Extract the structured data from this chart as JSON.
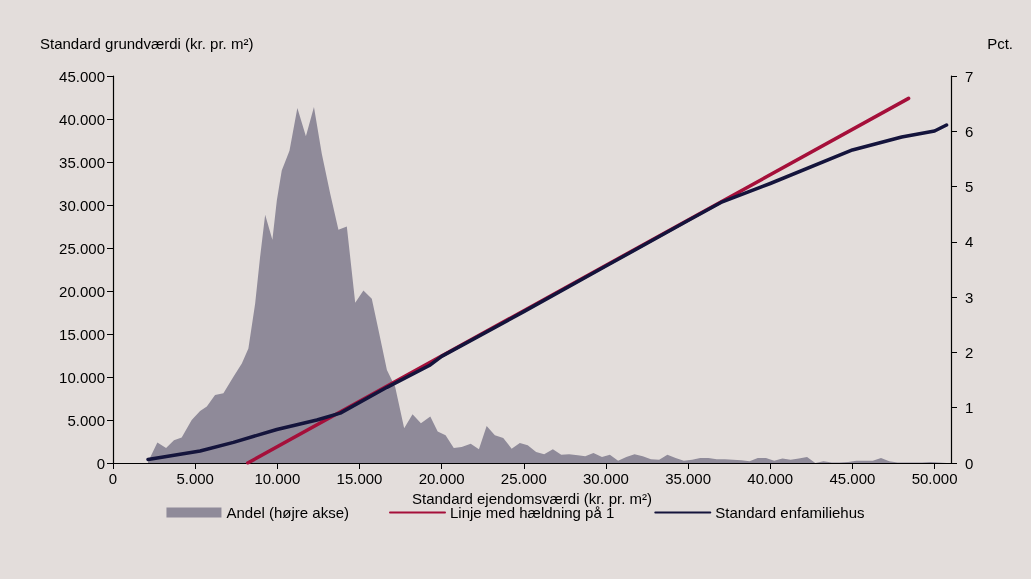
{
  "chart_data": {
    "type": "line",
    "xlabel": "Standard ejendomsværdi (kr. pr. m²)",
    "ylabel": "Standard grundværdi (kr. pr. m²)",
    "y2label": "Pct.",
    "xlim": [
      0,
      51000
    ],
    "xticks": [
      {
        "value": 0,
        "label": "0"
      },
      {
        "value": 5000,
        "label": "5.000"
      },
      {
        "value": 10000,
        "label": "10.000"
      },
      {
        "value": 15000,
        "label": "15.000"
      },
      {
        "value": 20000,
        "label": "20.000"
      },
      {
        "value": 25000,
        "label": "25.000"
      },
      {
        "value": 30000,
        "label": "30.000"
      },
      {
        "value": 35000,
        "label": "35.000"
      },
      {
        "value": 40000,
        "label": "40.000"
      },
      {
        "value": 45000,
        "label": "45.000"
      },
      {
        "value": 50000,
        "label": "50.000"
      }
    ],
    "ylim": [
      0,
      45000
    ],
    "yticks": [
      {
        "value": 0,
        "label": "0"
      },
      {
        "value": 5000,
        "label": "5.000"
      },
      {
        "value": 10000,
        "label": "10.000"
      },
      {
        "value": 15000,
        "label": "15.000"
      },
      {
        "value": 20000,
        "label": "20.000"
      },
      {
        "value": 25000,
        "label": "25.000"
      },
      {
        "value": 30000,
        "label": "30.000"
      },
      {
        "value": 35000,
        "label": "35.000"
      },
      {
        "value": 40000,
        "label": "40.000"
      },
      {
        "value": 45000,
        "label": "45.000"
      }
    ],
    "y2lim": [
      0,
      7
    ],
    "y2ticks": [
      0,
      1,
      2,
      3,
      4,
      5,
      6,
      7
    ],
    "grid": false,
    "legend": "bottom",
    "marker": "none",
    "series": [
      {
        "name": "Andel (højre akse)",
        "type": "area",
        "axis": "y2",
        "color": "#8f8a99",
        "x": [
          2130,
          2700,
          3230,
          3710,
          4180,
          4790,
          5300,
          5710,
          6210,
          6720,
          7330,
          7840,
          8240,
          8650,
          8950,
          9260,
          9700,
          9970,
          10270,
          10740,
          11220,
          11740,
          12230,
          12710,
          13220,
          13720,
          14230,
          14740,
          15240,
          15750,
          16160,
          16670,
          17170,
          17720,
          18230,
          18740,
          19310,
          19760,
          20240,
          20740,
          21220,
          21770,
          22270,
          22740,
          23240,
          23750,
          24260,
          24760,
          25240,
          25750,
          26240,
          26770,
          27280,
          27760,
          28290,
          28740,
          29240,
          29760,
          30240,
          30740,
          31240,
          31740,
          32240,
          32740,
          33240,
          33740,
          34240,
          34740,
          35240,
          35740,
          36240,
          36740,
          37240,
          37740,
          38240,
          38740,
          39240,
          39740,
          40240,
          40740,
          41240,
          41740,
          42240,
          42740,
          43240,
          43740,
          44240,
          44740,
          45240,
          45740,
          46240,
          46740,
          47240,
          47740,
          48240,
          48740,
          49240,
          49740,
          50240,
          50740
        ],
        "values": [
          0.02,
          0.37,
          0.27,
          0.41,
          0.46,
          0.78,
          0.94,
          1.02,
          1.23,
          1.26,
          1.56,
          1.8,
          2.07,
          2.88,
          3.72,
          4.49,
          4.04,
          4.75,
          5.29,
          5.65,
          6.42,
          5.91,
          6.44,
          5.59,
          4.87,
          4.22,
          4.28,
          2.9,
          3.12,
          2.97,
          2.4,
          1.68,
          1.38,
          0.63,
          0.88,
          0.72,
          0.84,
          0.57,
          0.5,
          0.27,
          0.29,
          0.35,
          0.25,
          0.67,
          0.5,
          0.45,
          0.26,
          0.36,
          0.32,
          0.2,
          0.16,
          0.25,
          0.15,
          0.16,
          0.14,
          0.12,
          0.18,
          0.11,
          0.15,
          0.04,
          0.11,
          0.16,
          0.12,
          0.07,
          0.06,
          0.15,
          0.09,
          0.04,
          0.06,
          0.09,
          0.09,
          0.07,
          0.07,
          0.06,
          0.05,
          0.03,
          0.09,
          0.09,
          0.04,
          0.08,
          0.06,
          0.08,
          0.11,
          0,
          0.03,
          0.01,
          0.01,
          0.02,
          0.04,
          0.04,
          0.04,
          0.09,
          0.03,
          0.01,
          0.01,
          0.01,
          0.01,
          0.02,
          0.01,
          0
        ]
      },
      {
        "name": "Linje med hældning på 1",
        "color": "#a50f3a",
        "x": [
          8200,
          48420
        ],
        "values": [
          0,
          42400
        ]
      },
      {
        "name": "Standard enfamiliehus",
        "color": "#14143c",
        "x": [
          2130,
          5300,
          7330,
          9970,
          12410,
          13830,
          16670,
          19310,
          20000,
          25000,
          30000,
          35000,
          37000,
          40000,
          45000,
          48000,
          50000,
          50730
        ],
        "values": [
          400,
          1400,
          2400,
          3900,
          5000,
          5800,
          8800,
          11400,
          12400,
          17600,
          22900,
          28200,
          30300,
          32500,
          36400,
          37900,
          38600,
          39300
        ]
      }
    ]
  }
}
